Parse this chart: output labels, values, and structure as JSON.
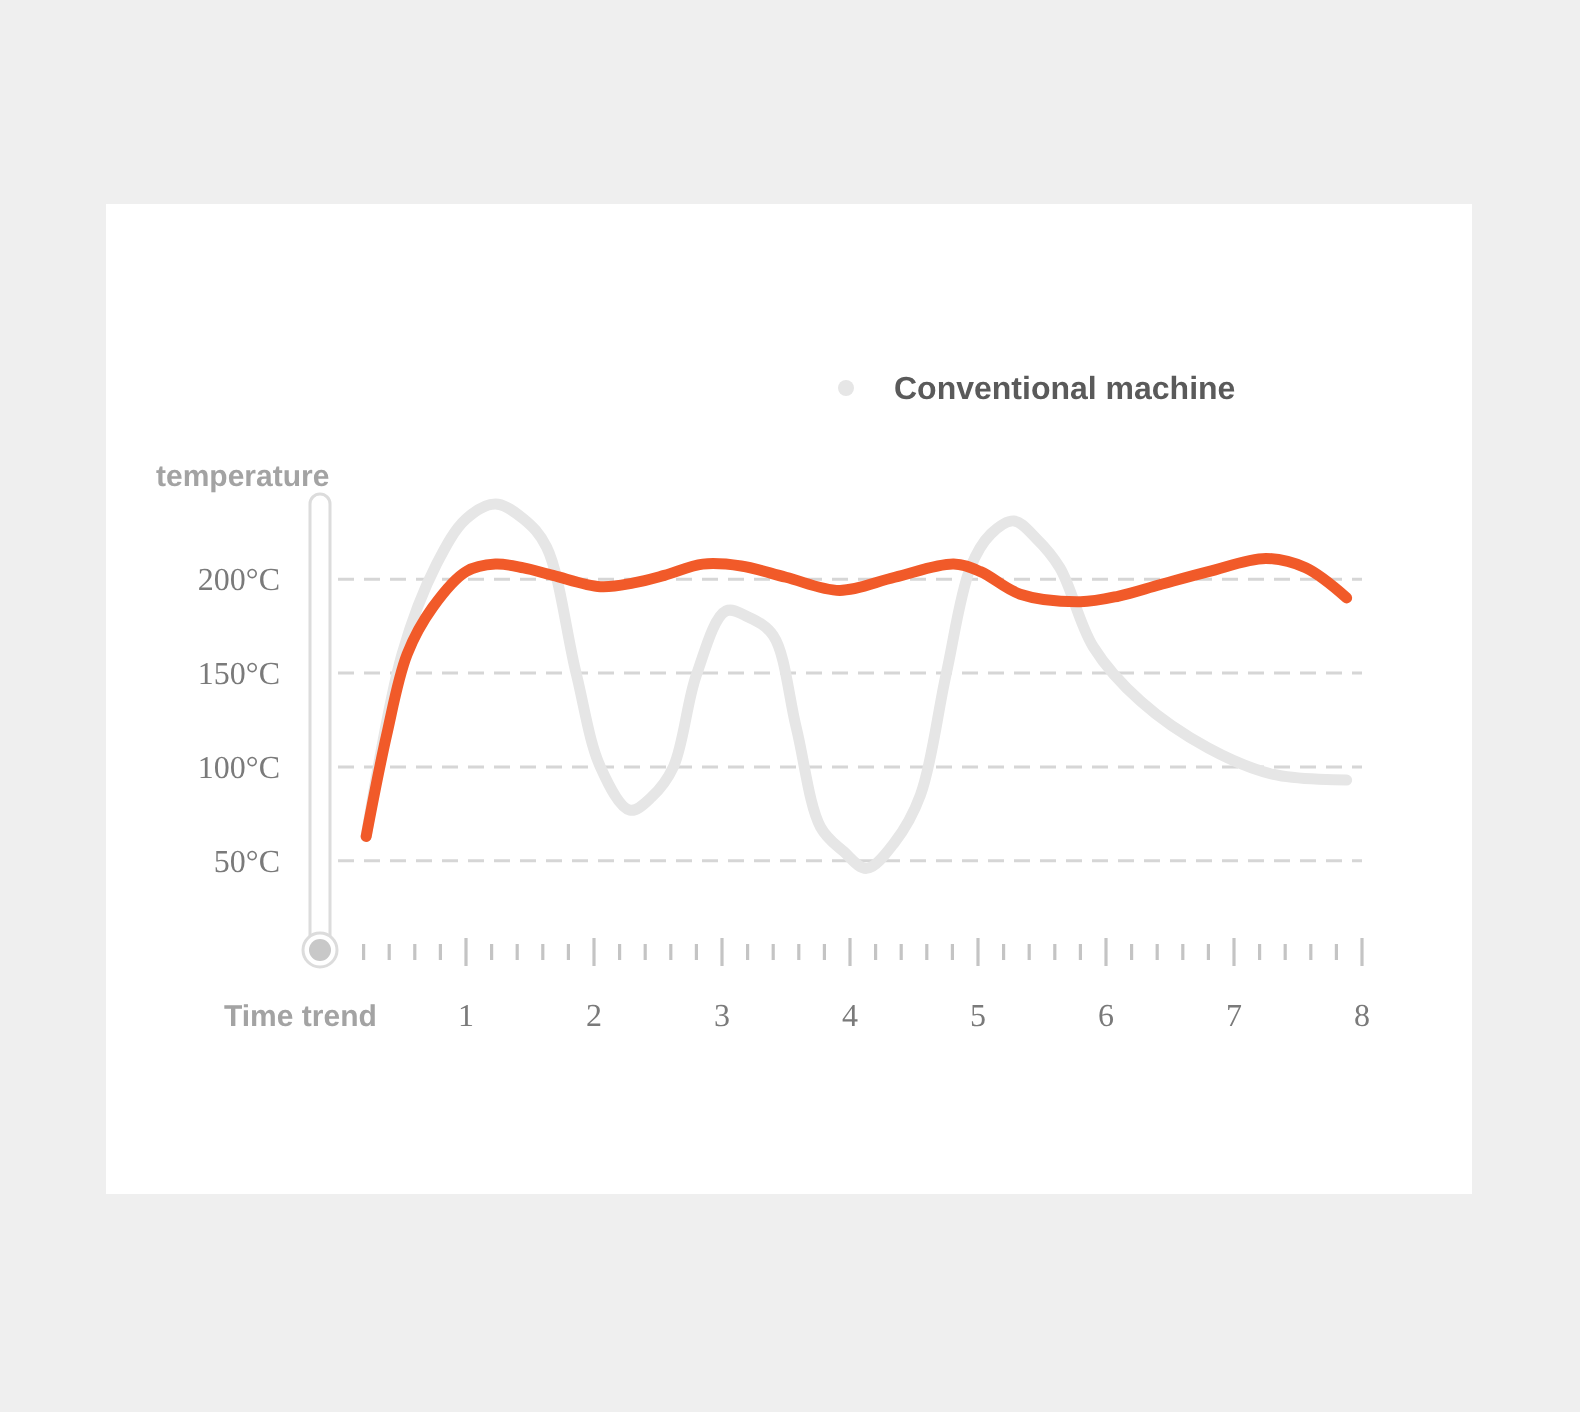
{
  "chart_data": {
    "type": "line",
    "xlabel": "Time trend",
    "ylabel": "temperature",
    "xlim": [
      0,
      8
    ],
    "ylim": [
      10,
      240
    ],
    "xticks": [
      {
        "value": 0.2,
        "label": null
      },
      {
        "value": 0.4,
        "label": null
      },
      {
        "value": 0.6,
        "label": null
      },
      {
        "value": 0.8,
        "label": null
      },
      1,
      {
        "value": 1.2,
        "label": null
      },
      {
        "value": 1.4,
        "label": null
      },
      {
        "value": 1.6,
        "label": null
      },
      {
        "value": 1.8,
        "label": null
      },
      2,
      {
        "value": 2.2,
        "label": null
      },
      {
        "value": 2.4,
        "label": null
      },
      {
        "value": 2.6,
        "label": null
      },
      {
        "value": 2.8,
        "label": null
      },
      3,
      {
        "value": 3.2,
        "label": null
      },
      {
        "value": 3.4,
        "label": null
      },
      {
        "value": 3.6,
        "label": null
      },
      {
        "value": 3.8,
        "label": null
      },
      4,
      {
        "value": 4.2,
        "label": null
      },
      {
        "value": 4.4,
        "label": null
      },
      {
        "value": 4.6,
        "label": null
      },
      {
        "value": 4.8,
        "label": null
      },
      5,
      {
        "value": 5.2,
        "label": null
      },
      {
        "value": 5.4,
        "label": null
      },
      {
        "value": 5.6,
        "label": null
      },
      {
        "value": 5.8,
        "label": null
      },
      6,
      {
        "value": 6.2,
        "label": null
      },
      {
        "value": 6.4,
        "label": null
      },
      {
        "value": 6.6,
        "label": null
      },
      {
        "value": 6.8,
        "label": null
      },
      7,
      {
        "value": 7.2,
        "label": null
      },
      {
        "value": 7.4,
        "label": null
      },
      {
        "value": 7.6,
        "label": null
      },
      {
        "value": 7.8,
        "label": null
      },
      8
    ],
    "yticks": [
      {
        "value": 50,
        "label": "50°C"
      },
      {
        "value": 100,
        "label": "100°C"
      },
      {
        "value": 150,
        "label": "150°C"
      },
      {
        "value": 200,
        "label": "200°C"
      }
    ],
    "grid": "y",
    "legend": "top",
    "series": [
      {
        "name": "Conventional machine",
        "color": "#e6e6e6",
        "x": [
          0.22,
          0.5,
          0.77,
          1.0,
          1.23,
          1.45,
          1.63,
          1.86,
          2.05,
          2.28,
          2.45,
          2.62,
          2.8,
          3.03,
          3.2,
          3.4,
          3.58,
          3.77,
          3.95,
          4.13,
          4.35,
          4.55,
          4.75,
          4.94,
          5.1,
          5.28,
          5.45,
          5.64,
          5.9,
          6.27,
          6.8,
          7.31,
          7.88
        ],
        "values": [
          63,
          160,
          208,
          232,
          240,
          232,
          217,
          150,
          100,
          77,
          84,
          100,
          149,
          183,
          180,
          170,
          121,
          68,
          55,
          46,
          60,
          85,
          149,
          206,
          224,
          231,
          222,
          206,
          164,
          135,
          110,
          96,
          93
        ]
      },
      {
        "color": "#f15a29",
        "x": [
          0.22,
          0.38,
          0.54,
          0.74,
          1.0,
          1.23,
          1.45,
          1.68,
          2.05,
          2.31,
          2.55,
          2.85,
          3.15,
          3.5,
          3.92,
          4.35,
          4.81,
          5.02,
          5.33,
          5.8,
          6.1,
          6.42,
          6.8,
          7.25,
          7.56,
          7.88
        ],
        "values": [
          63,
          117,
          160,
          185,
          204,
          208,
          206,
          202,
          196,
          198,
          202,
          208,
          207,
          201,
          194,
          201,
          208,
          204,
          192,
          188,
          191,
          197,
          204,
          211,
          206,
          190
        ]
      }
    ]
  }
}
